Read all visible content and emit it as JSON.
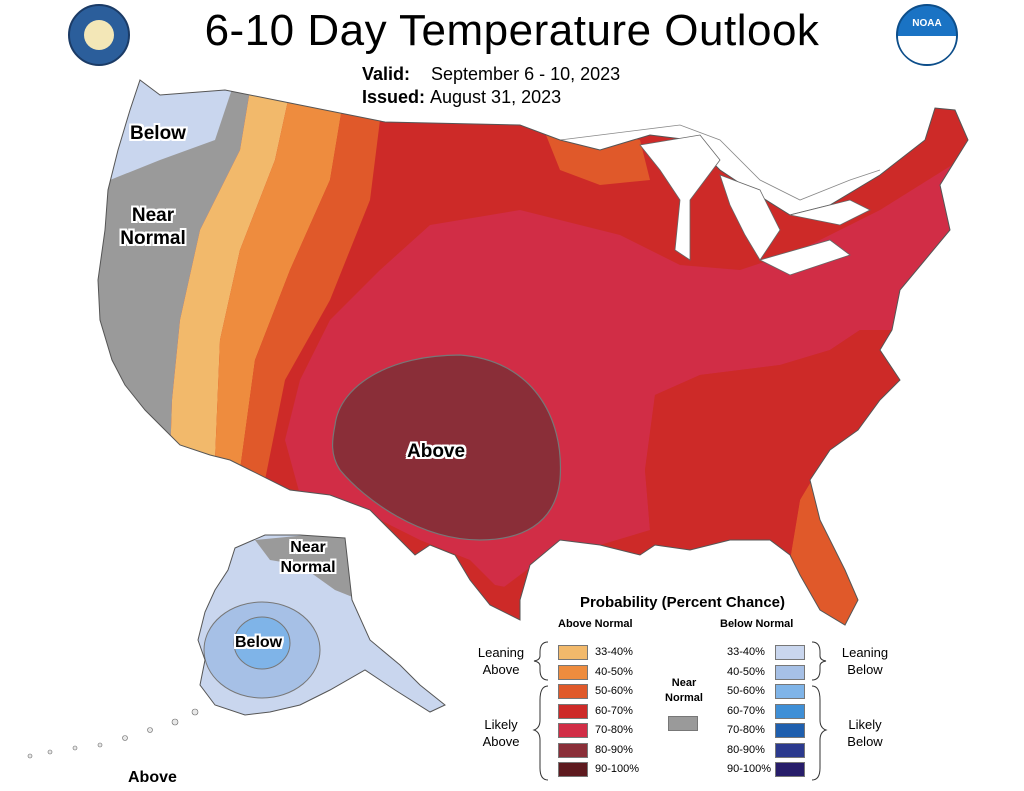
{
  "header": {
    "title": "6-10 Day Temperature Outlook",
    "valid_label": "Valid:",
    "valid_value": "September 6 - 10, 2023",
    "issued_label": "Issued:",
    "issued_value": "August 31, 2023"
  },
  "logos": {
    "left": "commerce-seal",
    "right": "noaa-logo",
    "right_text": "NOAA"
  },
  "map_labels": {
    "below_northwest": "Below",
    "near_normal_west": "Near Normal",
    "above_south_central": "Above",
    "near_normal_alaska": "Near Normal",
    "below_alaska": "Below",
    "above_aleutians": "Above"
  },
  "legend": {
    "title": "Probability (Percent Chance)",
    "above_heading": "Above Normal",
    "below_heading": "Below Normal",
    "near_heading": "Near Normal",
    "leaning_above": "Leaning Above",
    "likely_above": "Likely Above",
    "leaning_below": "Leaning Below",
    "likely_below": "Likely Below",
    "above": [
      {
        "label": "33-40%",
        "color": "#f2b96b"
      },
      {
        "label": "40-50%",
        "color": "#ee8c3e"
      },
      {
        "label": "50-60%",
        "color": "#e0592a"
      },
      {
        "label": "60-70%",
        "color": "#cd2a28"
      },
      {
        "label": "70-80%",
        "color": "#d12d46"
      },
      {
        "label": "80-90%",
        "color": "#8a2e38"
      },
      {
        "label": "90-100%",
        "color": "#5e1a1f"
      }
    ],
    "near_color": "#9a9a9a",
    "below": [
      {
        "label": "33-40%",
        "color": "#c9d6ee"
      },
      {
        "label": "40-50%",
        "color": "#a6c0e6"
      },
      {
        "label": "50-60%",
        "color": "#7fb4e8"
      },
      {
        "label": "60-70%",
        "color": "#3f8fd6"
      },
      {
        "label": "70-80%",
        "color": "#1f5fae"
      },
      {
        "label": "80-90%",
        "color": "#2b3a8e"
      },
      {
        "label": "90-100%",
        "color": "#271d6a"
      }
    ]
  }
}
